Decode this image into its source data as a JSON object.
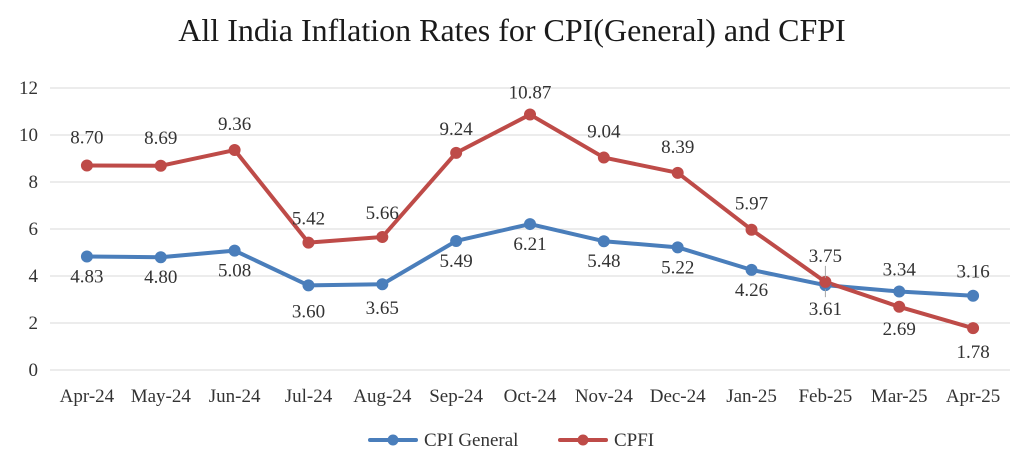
{
  "chart_data": {
    "type": "line",
    "title": "All India Inflation Rates for CPI(General) and CFPI",
    "categories": [
      "Apr-24",
      "May-24",
      "Jun-24",
      "Jul-24",
      "Aug-24",
      "Sep-24",
      "Oct-24",
      "Nov-24",
      "Dec-24",
      "Jan-25",
      "Feb-25",
      "Mar-25",
      "Apr-25"
    ],
    "series": [
      {
        "name": "CPI General",
        "color": "#4a7ebb",
        "values": [
          4.83,
          4.8,
          5.08,
          3.6,
          3.65,
          5.49,
          6.21,
          5.48,
          5.22,
          4.26,
          3.61,
          3.34,
          3.16
        ],
        "labels": [
          "4.83",
          "4.80",
          "5.08",
          "3.60",
          "3.65",
          "5.49",
          "6.21",
          "5.48",
          "5.22",
          "4.26",
          "3.61",
          "3.34",
          "3.16"
        ]
      },
      {
        "name": "CPFI",
        "color": "#be4b48",
        "values": [
          8.7,
          8.69,
          9.36,
          5.42,
          5.66,
          9.24,
          10.87,
          9.04,
          8.39,
          5.97,
          3.75,
          2.69,
          1.78
        ],
        "labels": [
          "8.70",
          "8.69",
          "9.36",
          "5.42",
          "5.66",
          "9.24",
          "10.87",
          "9.04",
          "8.39",
          "5.97",
          "3.75",
          "2.69",
          "1.78"
        ]
      }
    ],
    "y_ticks": [
      "0",
      "2",
      "4",
      "6",
      "8",
      "10",
      "12"
    ],
    "ylim": [
      0,
      12
    ],
    "grid": true,
    "legend_position": "bottom"
  }
}
